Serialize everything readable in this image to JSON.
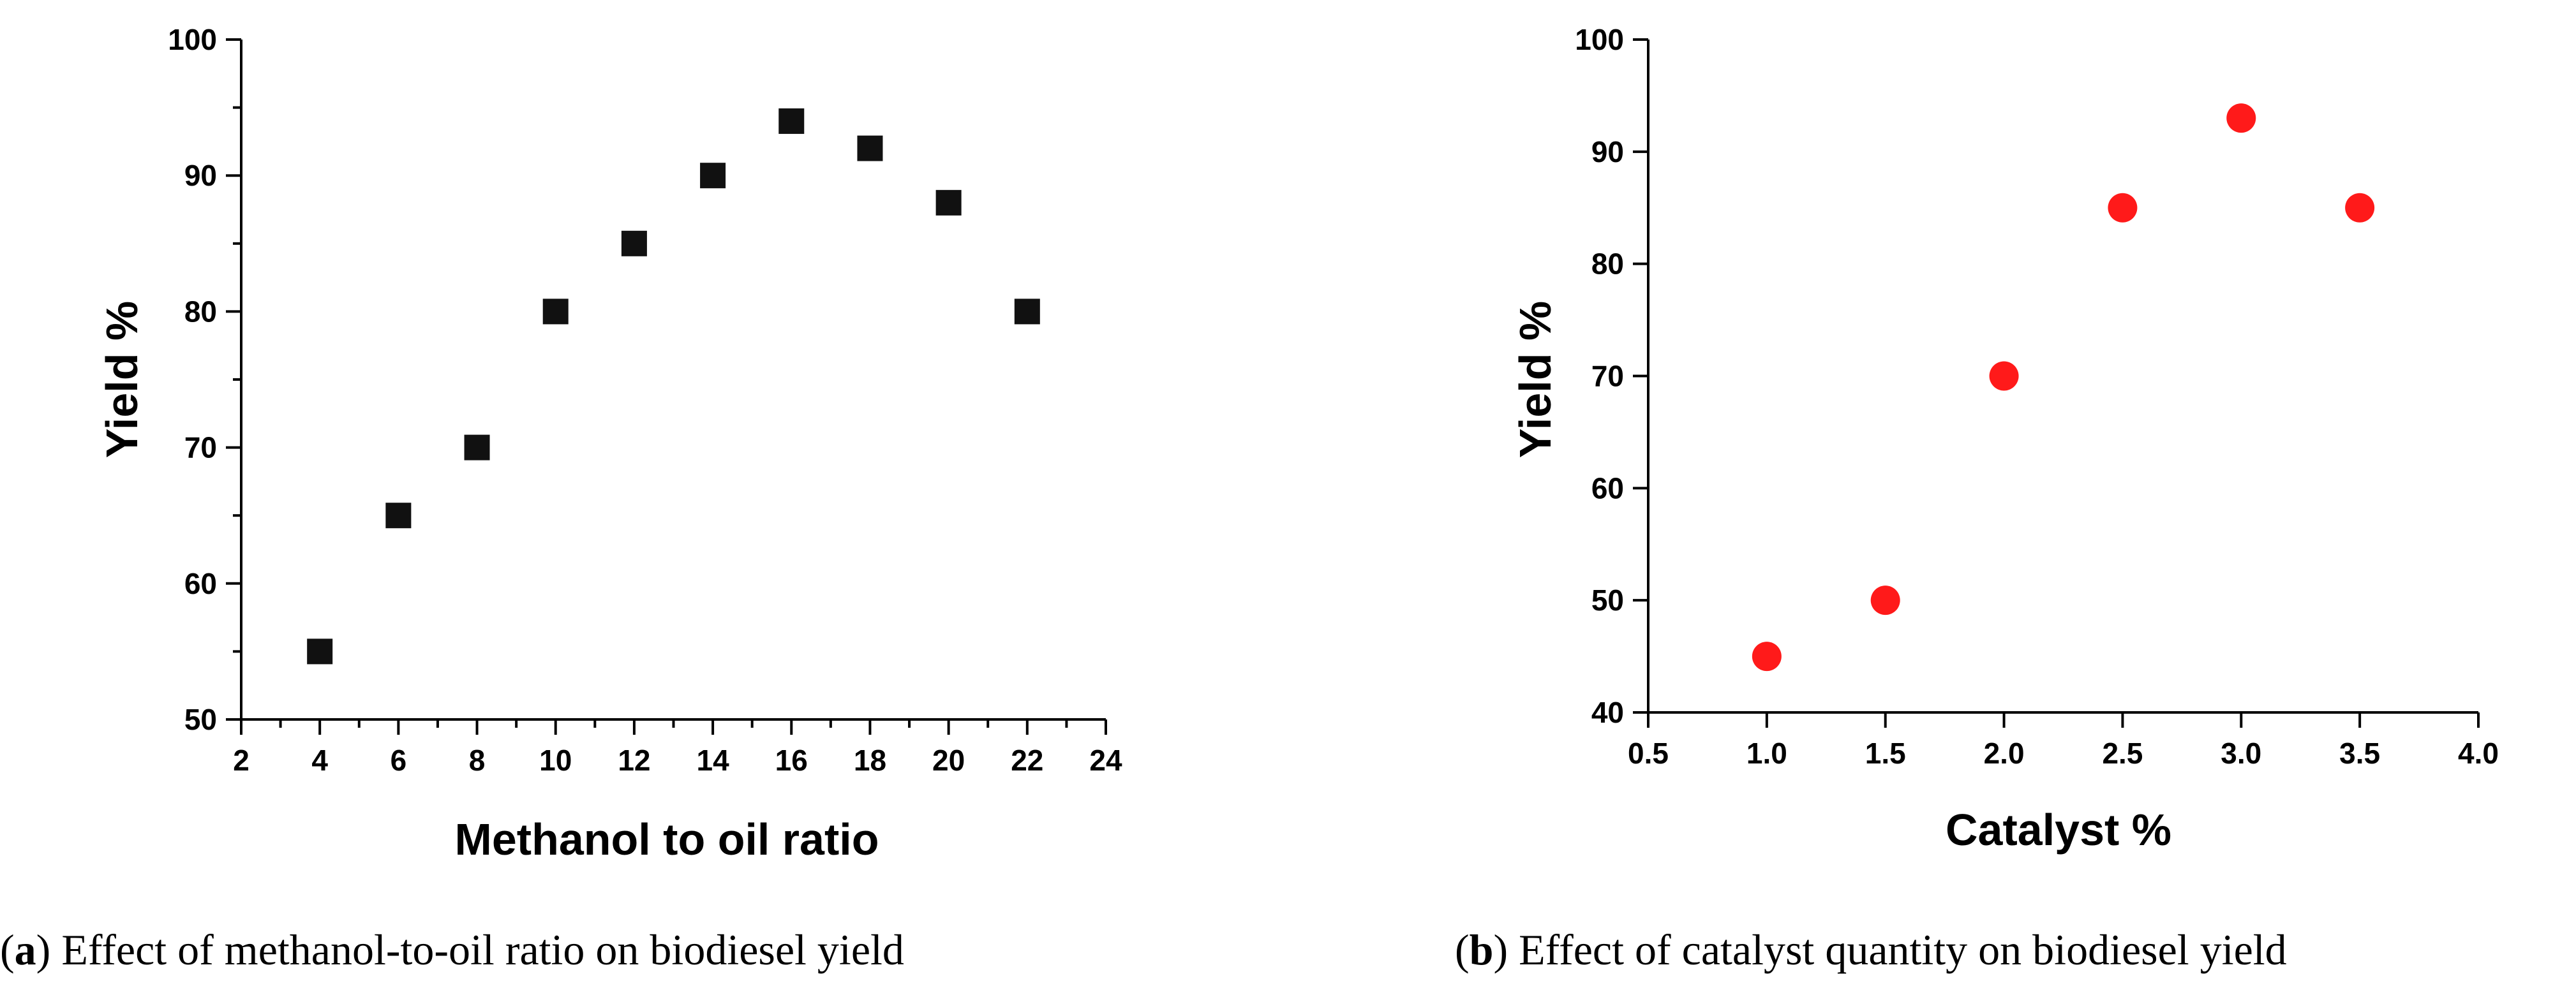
{
  "chart_data": [
    {
      "type": "scatter",
      "title": "",
      "xlabel": "Methanol to oil ratio",
      "ylabel": "Yield %",
      "xlim": [
        2,
        24
      ],
      "ylim": [
        50,
        100
      ],
      "xticks": [
        2,
        4,
        6,
        8,
        10,
        12,
        14,
        16,
        18,
        20,
        22,
        24
      ],
      "yticks": [
        50,
        60,
        70,
        80,
        90,
        100
      ],
      "grid": false,
      "marker": "square",
      "color": "#111111",
      "x": [
        4,
        6,
        8,
        10,
        12,
        14,
        16,
        18,
        20,
        22
      ],
      "y": [
        55,
        65,
        70,
        80,
        85,
        90,
        94,
        92,
        88,
        80
      ],
      "caption": {
        "letter": "a",
        "text": "Effect of methanol-to-oil ratio on biodiesel yield"
      }
    },
    {
      "type": "scatter",
      "title": "",
      "xlabel": "Catalyst %",
      "ylabel": "Yield %",
      "xlim": [
        0.5,
        4.0
      ],
      "ylim": [
        40,
        100
      ],
      "xticks": [
        "0.5",
        "1.0",
        "1.5",
        "2.0",
        "2.5",
        "3.0",
        "3.5",
        "4.0"
      ],
      "yticks": [
        40,
        50,
        60,
        70,
        80,
        90,
        100
      ],
      "grid": false,
      "marker": "circle",
      "color": "#ff1a1a",
      "x": [
        1.0,
        1.5,
        2.0,
        2.5,
        3.0,
        3.5
      ],
      "y": [
        45,
        50,
        70,
        85,
        93,
        85
      ],
      "caption": {
        "letter": "b",
        "text": "Effect of catalyst quantity on biodiesel yield"
      }
    }
  ]
}
